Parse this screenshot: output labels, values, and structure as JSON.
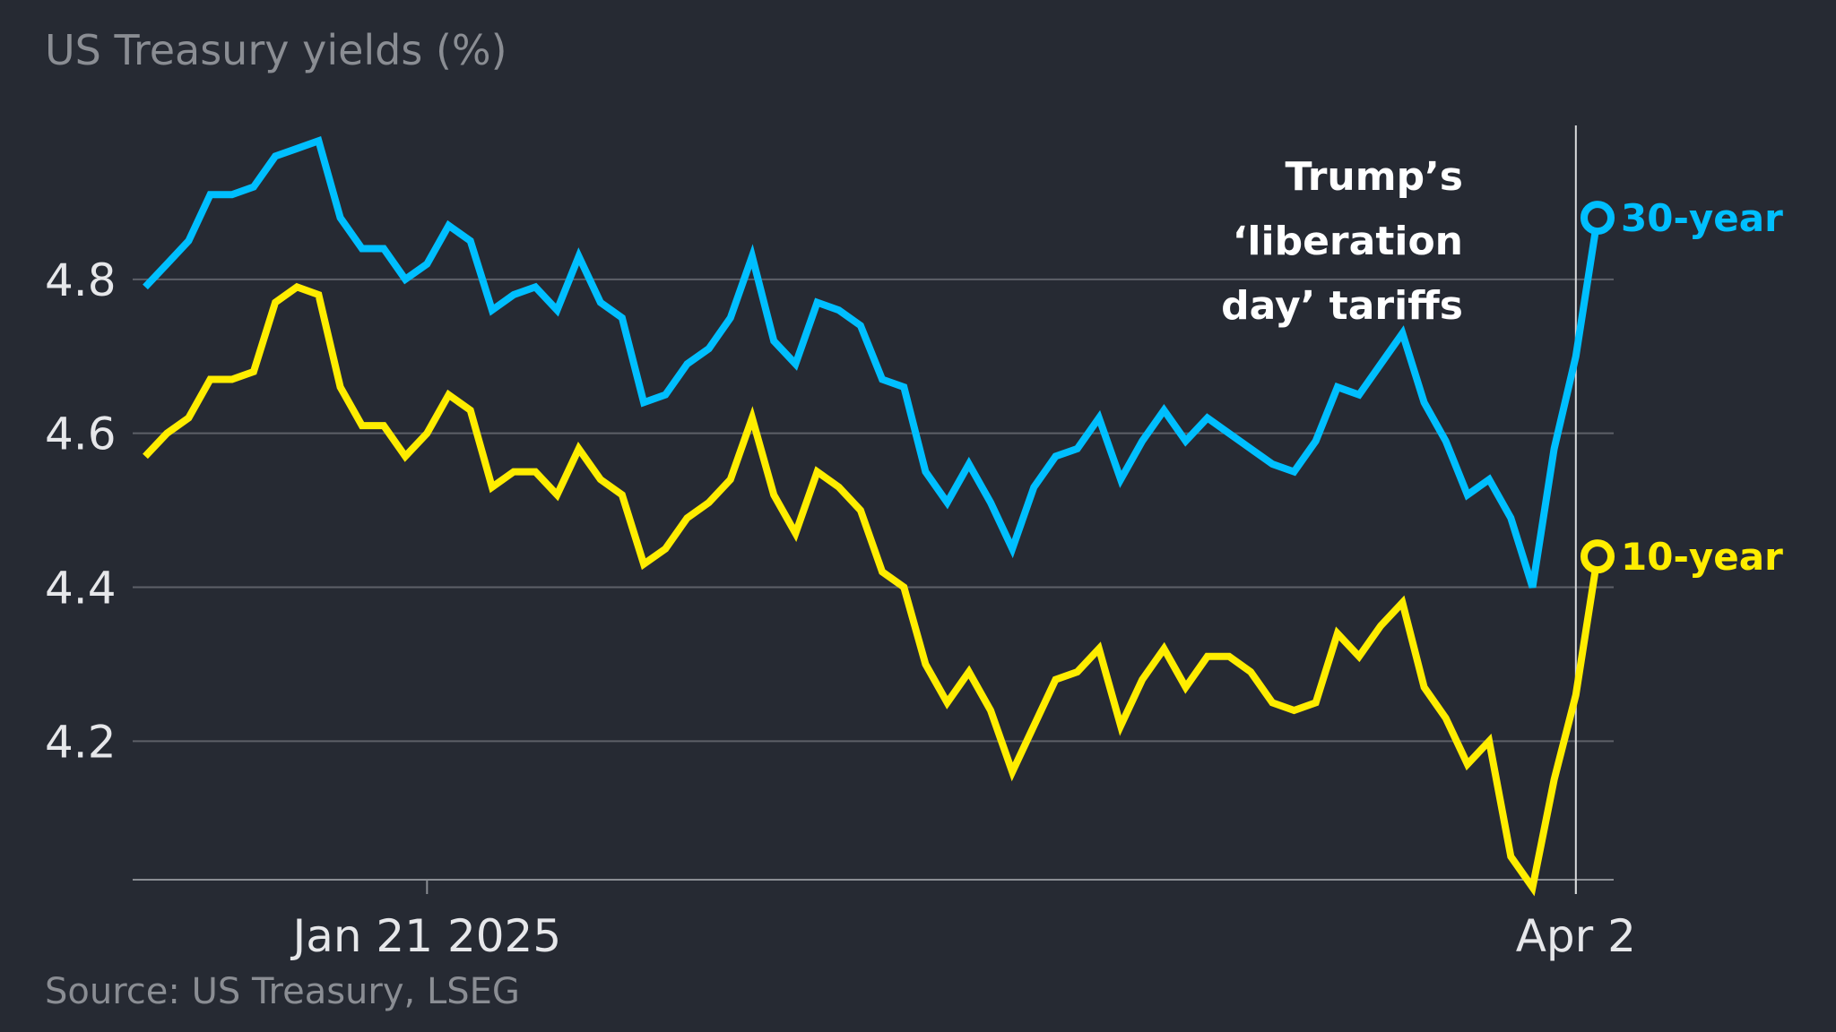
{
  "chart_data": {
    "type": "line",
    "title": "US Treasury yields (%)",
    "source": "Source: US Treasury, LSEG",
    "xlabel": "",
    "ylabel": "",
    "ylim": [
      4.02,
      5.0
    ],
    "y_ticks": [
      "4.8",
      "4.6",
      "4.4",
      "4.2"
    ],
    "y_tick_values": [
      4.8,
      4.6,
      4.4,
      4.2
    ],
    "x_ticks": [
      "Jan 21 2025",
      "Apr 2"
    ],
    "x_tick_index": [
      13,
      66
    ],
    "grid": true,
    "annotation": {
      "lines": [
        "Trump’s",
        "‘liberation",
        "day’ tariffs"
      ],
      "x_index": 66
    },
    "series": [
      {
        "name": "30-year",
        "color": "#00bfff",
        "values": [
          4.79,
          4.82,
          4.85,
          4.91,
          4.91,
          4.92,
          4.96,
          4.97,
          4.98,
          4.88,
          4.84,
          4.84,
          4.8,
          4.82,
          4.87,
          4.85,
          4.76,
          4.78,
          4.79,
          4.76,
          4.83,
          4.77,
          4.75,
          4.64,
          4.65,
          4.69,
          4.71,
          4.75,
          4.83,
          4.72,
          4.69,
          4.77,
          4.76,
          4.74,
          4.67,
          4.66,
          4.55,
          4.51,
          4.56,
          4.51,
          4.45,
          4.53,
          4.57,
          4.58,
          4.62,
          4.54,
          4.59,
          4.63,
          4.59,
          4.62,
          4.6,
          4.58,
          4.56,
          4.55,
          4.59,
          4.66,
          4.65,
          4.69,
          4.73,
          4.64,
          4.59,
          4.52,
          4.54,
          4.49,
          4.4,
          4.58,
          4.7,
          4.88
        ]
      },
      {
        "name": "10-year",
        "color": "#ffed00",
        "values": [
          4.57,
          4.6,
          4.62,
          4.67,
          4.67,
          4.68,
          4.77,
          4.79,
          4.78,
          4.66,
          4.61,
          4.61,
          4.57,
          4.6,
          4.65,
          4.63,
          4.53,
          4.55,
          4.55,
          4.52,
          4.58,
          4.54,
          4.52,
          4.43,
          4.45,
          4.49,
          4.51,
          4.54,
          4.62,
          4.52,
          4.47,
          4.55,
          4.53,
          4.5,
          4.42,
          4.4,
          4.3,
          4.25,
          4.29,
          4.24,
          4.16,
          4.22,
          4.28,
          4.29,
          4.32,
          4.22,
          4.28,
          4.32,
          4.27,
          4.31,
          4.31,
          4.29,
          4.25,
          4.24,
          4.25,
          4.34,
          4.31,
          4.35,
          4.38,
          4.27,
          4.23,
          4.17,
          4.2,
          4.05,
          4.01,
          4.15,
          4.26,
          4.44
        ]
      }
    ]
  }
}
